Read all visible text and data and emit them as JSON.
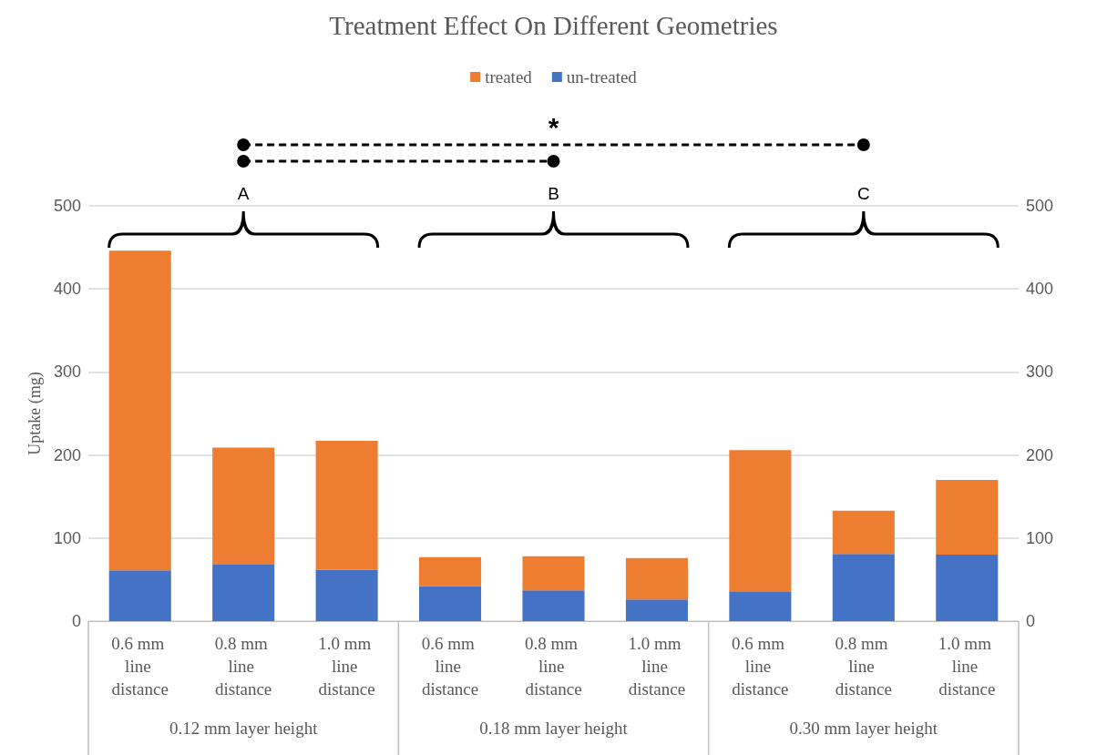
{
  "chart_data": {
    "type": "bar",
    "title": "Treatment Effect On Different Geometries",
    "ylabel": "Uptake (mg)",
    "categories": [
      "0.6 mm line distance",
      "0.8 mm line distance",
      "1.0 mm line distance",
      "0.6 mm line distance",
      "0.8 mm line distance",
      "1.0 mm line distance",
      "0.6 mm line distance",
      "0.8 mm line distance",
      "1.0 mm line distance"
    ],
    "series": [
      {
        "name": "un-treated",
        "color": "#4472c4",
        "values": [
          61,
          68,
          62,
          42,
          37,
          26,
          36,
          81,
          80
        ]
      },
      {
        "name": "treated",
        "color": "#ed7d31",
        "values": [
          385,
          141,
          155,
          35,
          41,
          50,
          170,
          52,
          90
        ]
      }
    ],
    "stacked": true,
    "ylim": [
      0,
      500
    ],
    "yticks": [
      0,
      100,
      200,
      300,
      400,
      500
    ],
    "y2lim": [
      0,
      500
    ],
    "y2ticks": [
      0,
      100,
      200,
      300,
      400,
      500
    ],
    "grid": "y",
    "legend": "top",
    "annotations": [
      "0.12 mm layer height",
      "0.18 mm layer height",
      "0.30 mm layer height",
      "A",
      "B",
      "C",
      "*"
    ]
  }
}
